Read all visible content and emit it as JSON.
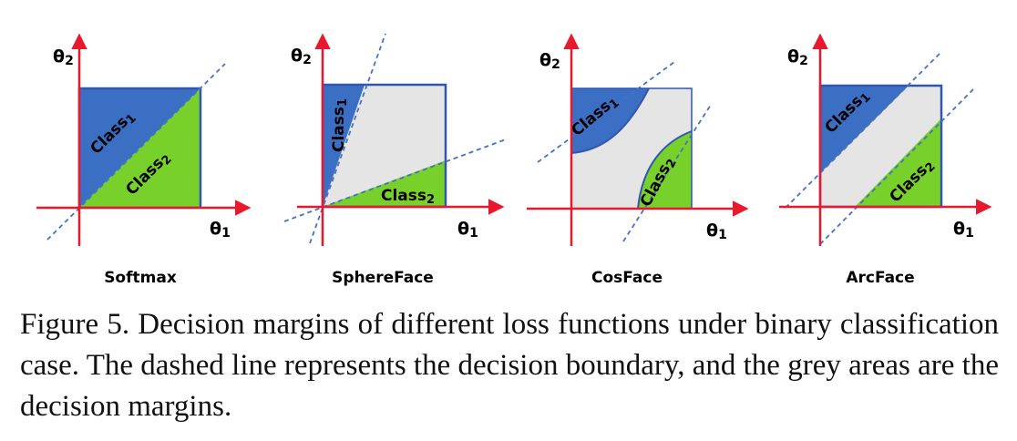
{
  "figure": {
    "axis": {
      "theta1_base": "θ",
      "theta1_sub": "1",
      "theta2_base": "θ",
      "theta2_sub": "2"
    },
    "class_labels": {
      "class1_base": "Class",
      "class1_sub": "1",
      "class2_base": "Class",
      "class2_sub": "2"
    },
    "panels": [
      {
        "title": "Softmax"
      },
      {
        "title": "SphereFace"
      },
      {
        "title": "CosFace"
      },
      {
        "title": "ArcFace"
      }
    ],
    "colors": {
      "class1": "#3a6fc3",
      "class2": "#78d12b",
      "margin": "#e5e5e5",
      "axis": "#e8192c",
      "box": "#2f57b0",
      "boundary": "#4472c4"
    }
  },
  "caption": {
    "text": "Figure 5. Decision margins of different loss functions under binary classification case. The dashed line represents the decision boundary, and the grey areas are the decision margins."
  }
}
